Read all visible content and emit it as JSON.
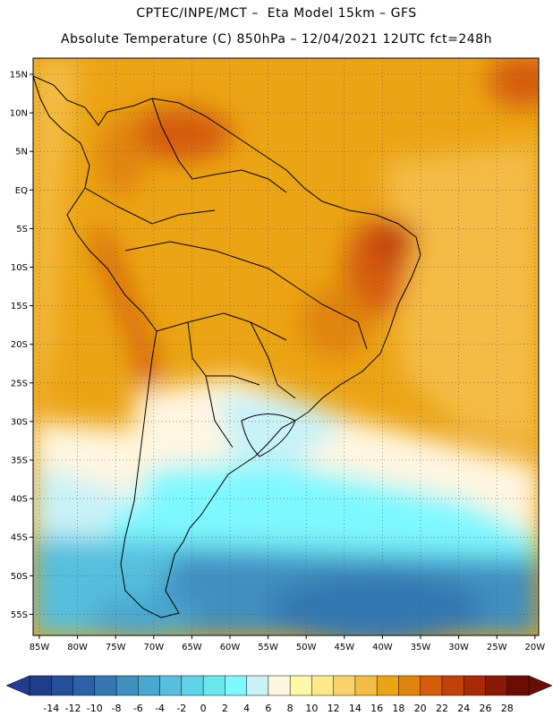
{
  "header": {
    "title_line1": "CPTEC/INPE/MCT –  Eta Model 15km – GFS",
    "title_line2": "Absolute Temperature (C) 850hPa – 12/04/2021 12UTC fct=248h"
  },
  "map": {
    "lat_labels": [
      "15N",
      "10N",
      "5N",
      "EQ",
      "5S",
      "10S",
      "15S",
      "20S",
      "25S",
      "30S",
      "35S",
      "40S",
      "45S",
      "50S",
      "55S"
    ],
    "lon_labels": [
      "85W",
      "80W",
      "75W",
      "70W",
      "65W",
      "60W",
      "55W",
      "50W",
      "45W",
      "40W",
      "35W",
      "30W",
      "25W",
      "20W"
    ]
  },
  "colorbar": {
    "labels": [
      "-14",
      "-12",
      "-10",
      "-8",
      "-6",
      "-4",
      "-2",
      "0",
      "2",
      "4",
      "6",
      "8",
      "10",
      "12",
      "14",
      "16",
      "18",
      "20",
      "22",
      "24",
      "26",
      "28"
    ],
    "colors": [
      "#1f3d8c",
      "#244f99",
      "#2b62a6",
      "#3378b3",
      "#3f8fbf",
      "#4aa7cf",
      "#55bfdd",
      "#5fd4e8",
      "#6ae6ef",
      "#7ef8ff",
      "#c8f2f8",
      "#fff6e0",
      "#fff7a8",
      "#fde88c",
      "#f9d36a",
      "#f4bc44",
      "#eba413",
      "#e08410",
      "#d45c0a",
      "#c14108",
      "#a82b06",
      "#8a1a05",
      "#6c0d04"
    ]
  }
}
